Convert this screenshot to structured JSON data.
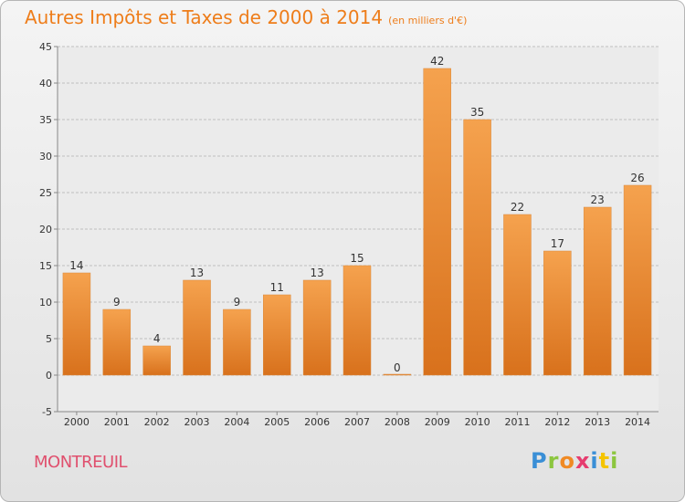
{
  "chart_data": {
    "type": "bar",
    "title": "Autres Impôts et Taxes de 2000 à 2014",
    "unit_note": "(en milliers d'€)",
    "categories": [
      "2000",
      "2001",
      "2002",
      "2003",
      "2004",
      "2005",
      "2006",
      "2007",
      "2008",
      "2009",
      "2010",
      "2011",
      "2012",
      "2013",
      "2014"
    ],
    "values": [
      14,
      9,
      4,
      13,
      9,
      11,
      13,
      15,
      0,
      42,
      35,
      22,
      17,
      23,
      26
    ],
    "data_labels": [
      "14",
      "9",
      "4",
      "13",
      "9",
      "11",
      "13",
      "15",
      "0",
      "42",
      "35",
      "22",
      "17",
      "23",
      "26"
    ],
    "yticks": [
      -5,
      0,
      5,
      10,
      15,
      20,
      25,
      30,
      35,
      40,
      45
    ],
    "ylim": [
      -5,
      45
    ],
    "grid": true,
    "bar_color": "#ee8c30",
    "bar_color_dark": "#d8711c"
  },
  "footer": {
    "town": "MONTREUIL",
    "brand_parts": [
      "P",
      "r",
      "o",
      "x",
      "i",
      "t",
      "i"
    ],
    "brand_colors": [
      "#3a8fd6",
      "#8cc63f",
      "#f08a24",
      "#e63c6f",
      "#3a8fd6",
      "#f5c400",
      "#8cc63f"
    ]
  },
  "colors": {
    "title": "#ee7d1a",
    "town": "#e0506e",
    "grid": "#bfbfbf",
    "axis": "#888888"
  }
}
